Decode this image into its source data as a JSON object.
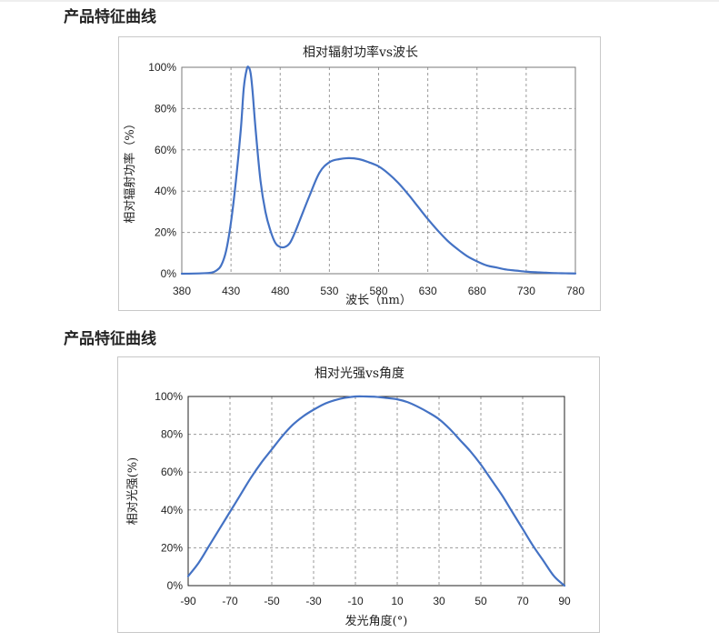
{
  "sections": [
    {
      "heading": "产品特征曲线"
    },
    {
      "heading": "产品特征曲线"
    }
  ],
  "chart_data": [
    {
      "type": "line",
      "title": "相对辐射功率vs波长",
      "xlabel": "波长（nm）",
      "ylabel": "相对辐射功率（%）",
      "xlim": [
        380,
        780
      ],
      "ylim": [
        0,
        100
      ],
      "xticks": [
        380,
        430,
        480,
        530,
        580,
        630,
        680,
        730,
        780
      ],
      "yticks": [
        0,
        20,
        40,
        60,
        80,
        100
      ],
      "ytick_labels": [
        "0%",
        "20%",
        "40%",
        "60%",
        "80%",
        "100%"
      ],
      "grid": true,
      "color": "#4472c4",
      "x": [
        380,
        400,
        410,
        415,
        420,
        425,
        430,
        435,
        440,
        443,
        446,
        448,
        450,
        452,
        455,
        460,
        465,
        470,
        475,
        480,
        485,
        490,
        495,
        500,
        510,
        520,
        530,
        540,
        550,
        560,
        570,
        580,
        590,
        600,
        610,
        620,
        630,
        640,
        650,
        660,
        670,
        680,
        690,
        700,
        710,
        720,
        730,
        740,
        750,
        760,
        770,
        780
      ],
      "y": [
        0,
        0.2,
        0.5,
        1.5,
        4,
        11,
        25,
        45,
        70,
        90,
        99,
        100,
        97,
        88,
        70,
        45,
        30,
        21,
        15,
        13,
        13,
        15,
        20,
        26,
        38,
        49,
        54,
        55.5,
        56,
        55.5,
        54,
        52,
        48.5,
        44,
        38.5,
        32.5,
        26.5,
        21,
        16,
        12,
        8.5,
        6,
        4,
        3,
        2,
        1.5,
        1,
        0.7,
        0.5,
        0.3,
        0.2,
        0.1
      ]
    },
    {
      "type": "line",
      "title": "相对光强vs角度",
      "xlabel": "发光角度(°)",
      "ylabel": "相对光强(%)",
      "xlim": [
        -90,
        90
      ],
      "ylim": [
        0,
        100
      ],
      "xticks": [
        -90,
        -70,
        -50,
        -30,
        -10,
        10,
        30,
        50,
        70,
        90
      ],
      "yticks": [
        0,
        20,
        40,
        60,
        80,
        100
      ],
      "ytick_labels": [
        "0%",
        "20%",
        "40%",
        "60%",
        "80%",
        "100%"
      ],
      "grid": true,
      "color": "#4472c4",
      "x": [
        -90,
        -85,
        -80,
        -75,
        -70,
        -65,
        -60,
        -55,
        -50,
        -45,
        -40,
        -35,
        -30,
        -25,
        -20,
        -15,
        -10,
        -5,
        0,
        5,
        10,
        15,
        20,
        25,
        30,
        35,
        40,
        45,
        50,
        55,
        60,
        65,
        70,
        75,
        80,
        85,
        90
      ],
      "y": [
        5,
        12,
        21,
        30,
        39,
        48,
        57,
        65,
        72,
        79,
        85,
        89.5,
        93,
        96,
        98,
        99.3,
        100,
        100,
        99.8,
        99.2,
        98.5,
        97,
        94.5,
        91.5,
        88,
        83,
        77,
        71,
        64,
        56,
        48,
        39,
        30,
        21,
        13,
        5,
        0
      ]
    }
  ]
}
